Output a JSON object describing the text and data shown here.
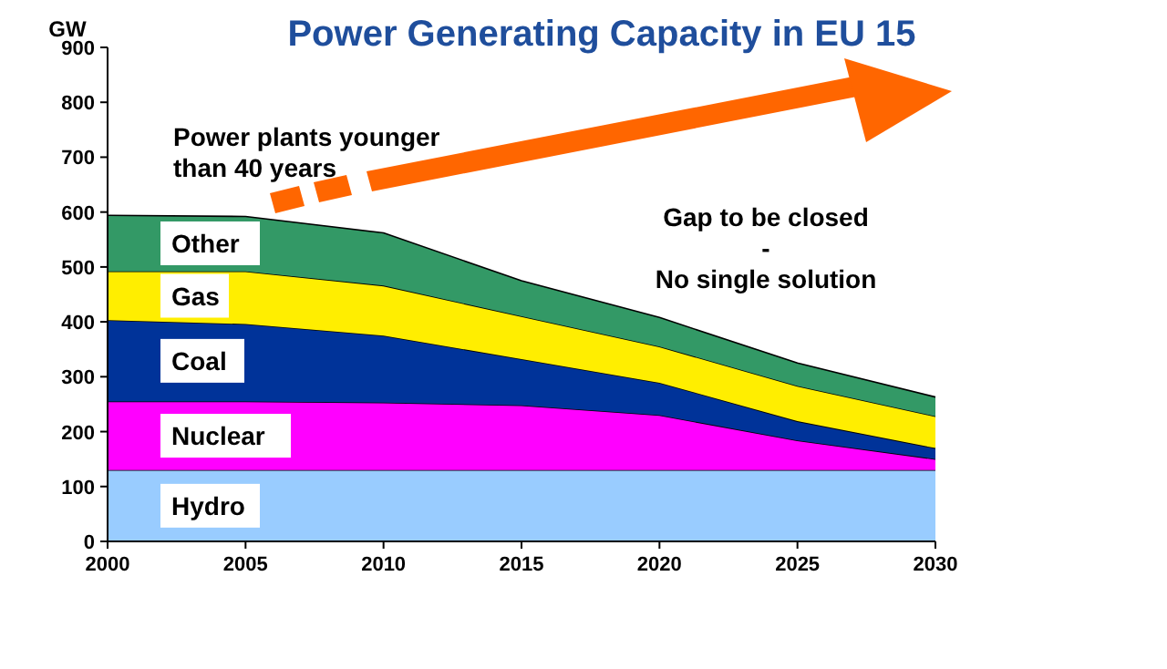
{
  "chart_data": {
    "type": "area",
    "stacked": true,
    "title": "Power Generating Capacity in EU 15",
    "ylabel": "GW",
    "x": [
      2000,
      2005,
      2010,
      2015,
      2020,
      2025,
      2030
    ],
    "series": [
      {
        "name": "Hydro",
        "color": "#99ccff",
        "values": [
          130,
          130,
          130,
          130,
          130,
          130,
          130
        ]
      },
      {
        "name": "Nuclear",
        "color": "#ff00ff",
        "values": [
          125,
          125,
          123,
          118,
          100,
          54,
          20
        ]
      },
      {
        "name": "Coal",
        "color": "#003399",
        "values": [
          148,
          141,
          122,
          84,
          59,
          35,
          20
        ]
      },
      {
        "name": "Gas",
        "color": "#ffee00",
        "values": [
          89,
          96,
          91,
          78,
          66,
          64,
          58
        ]
      },
      {
        "name": "Other",
        "color": "#339966",
        "values": [
          102,
          100,
          96,
          65,
          53,
          42,
          35
        ]
      }
    ],
    "xlim": [
      2000,
      2030
    ],
    "xticks": [
      2000,
      2005,
      2010,
      2015,
      2020,
      2025,
      2030
    ],
    "ylim": [
      0,
      900
    ],
    "yticks": [
      0,
      100,
      200,
      300,
      400,
      500,
      600,
      700,
      800,
      900
    ],
    "grid": false,
    "annotations": [
      "Power plants younger\nthan 40 years",
      "Gap to be closed\n-\nNo single solution"
    ]
  }
}
